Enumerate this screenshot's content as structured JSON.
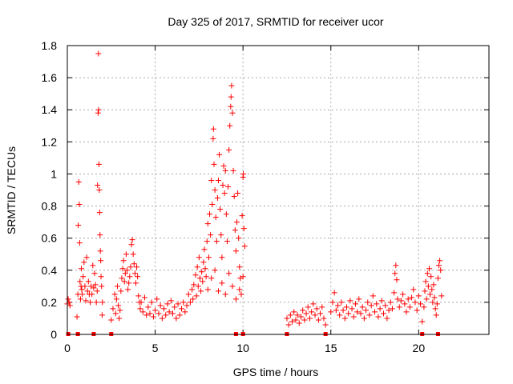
{
  "chart_data": {
    "type": "scatter",
    "title": "Day 325 of 2017, SRMTID for receiver ucor",
    "xlabel": "GPS time / hours",
    "ylabel": "SRMTID / TECUs",
    "xlim": [
      0,
      24
    ],
    "ylim": [
      0,
      1.8
    ],
    "xticks": [
      0,
      5,
      10,
      15,
      20
    ],
    "yticks": [
      0,
      0.2,
      0.4,
      0.6,
      0.8,
      1,
      1.2,
      1.4,
      1.6,
      1.8
    ],
    "ytick_labels": [
      "0",
      "0.2",
      "0.4",
      "0.6",
      "0.8",
      "1",
      "1.2",
      "1.4",
      "1.6",
      "1.8"
    ],
    "grid": true,
    "marker": "+",
    "color": "#ff0000",
    "gaps_marked_at_zero": [
      0.05,
      0.6,
      1.5,
      2.5,
      9.6,
      10.0,
      12.5,
      14.7,
      20.2,
      21.1
    ],
    "series": [
      {
        "name": "SRMTID",
        "points": [
          [
            0.0,
            0.19
          ],
          [
            0.05,
            0.22
          ],
          [
            0.1,
            0.2
          ],
          [
            0.15,
            0.18
          ],
          [
            0.55,
            0.11
          ],
          [
            0.6,
            0.25
          ],
          [
            0.62,
            0.68
          ],
          [
            0.65,
            0.95
          ],
          [
            0.68,
            0.81
          ],
          [
            0.7,
            0.57
          ],
          [
            0.72,
            0.33
          ],
          [
            0.75,
            0.22
          ],
          [
            0.78,
            0.3
          ],
          [
            0.8,
            0.41
          ],
          [
            0.82,
            0.28
          ],
          [
            0.85,
            0.25
          ],
          [
            0.9,
            0.36
          ],
          [
            0.95,
            0.45
          ],
          [
            1.0,
            0.3
          ],
          [
            1.05,
            0.21
          ],
          [
            1.1,
            0.48
          ],
          [
            1.15,
            0.27
          ],
          [
            1.2,
            0.33
          ],
          [
            1.25,
            0.25
          ],
          [
            1.3,
            0.2
          ],
          [
            1.35,
            0.3
          ],
          [
            1.4,
            0.25
          ],
          [
            1.45,
            0.43
          ],
          [
            1.5,
            0.29
          ],
          [
            1.55,
            0.38
          ],
          [
            1.6,
            0.31
          ],
          [
            1.65,
            0.2
          ],
          [
            1.7,
            0.27
          ],
          [
            1.72,
            0.93
          ],
          [
            1.75,
            1.38
          ],
          [
            1.77,
            1.75
          ],
          [
            1.78,
            1.4
          ],
          [
            1.8,
            1.06
          ],
          [
            1.82,
            0.9
          ],
          [
            1.84,
            0.76
          ],
          [
            1.86,
            0.62
          ],
          [
            1.88,
            0.52
          ],
          [
            1.9,
            0.46
          ],
          [
            1.92,
            0.36
          ],
          [
            1.95,
            0.3
          ],
          [
            1.98,
            0.12
          ],
          [
            2.0,
            0.2
          ],
          [
            2.5,
            0.09
          ],
          [
            2.6,
            0.16
          ],
          [
            2.7,
            0.25
          ],
          [
            2.75,
            0.13
          ],
          [
            2.8,
            0.22
          ],
          [
            2.85,
            0.3
          ],
          [
            2.9,
            0.18
          ],
          [
            2.95,
            0.1
          ],
          [
            3.0,
            0.15
          ],
          [
            3.05,
            0.27
          ],
          [
            3.1,
            0.35
          ],
          [
            3.15,
            0.41
          ],
          [
            3.2,
            0.46
          ],
          [
            3.25,
            0.33
          ],
          [
            3.3,
            0.38
          ],
          [
            3.35,
            0.5
          ],
          [
            3.4,
            0.4
          ],
          [
            3.45,
            0.28
          ],
          [
            3.5,
            0.32
          ],
          [
            3.55,
            0.36
          ],
          [
            3.6,
            0.42
          ],
          [
            3.65,
            0.56
          ],
          [
            3.7,
            0.59
          ],
          [
            3.75,
            0.5
          ],
          [
            3.8,
            0.44
          ],
          [
            3.85,
            0.38
          ],
          [
            3.9,
            0.32
          ],
          [
            3.95,
            0.42
          ],
          [
            4.0,
            0.36
          ],
          [
            4.05,
            0.24
          ],
          [
            4.1,
            0.2
          ],
          [
            4.15,
            0.16
          ],
          [
            4.2,
            0.2
          ],
          [
            4.3,
            0.14
          ],
          [
            4.4,
            0.23
          ],
          [
            4.5,
            0.12
          ],
          [
            4.6,
            0.17
          ],
          [
            4.7,
            0.13
          ],
          [
            4.8,
            0.2
          ],
          [
            4.9,
            0.11
          ],
          [
            5.0,
            0.15
          ],
          [
            5.1,
            0.22
          ],
          [
            5.2,
            0.13
          ],
          [
            5.3,
            0.18
          ],
          [
            5.4,
            0.1
          ],
          [
            5.5,
            0.16
          ],
          [
            5.6,
            0.12
          ],
          [
            5.7,
            0.19
          ],
          [
            5.8,
            0.14
          ],
          [
            5.9,
            0.21
          ],
          [
            6.0,
            0.13
          ],
          [
            6.1,
            0.17
          ],
          [
            6.2,
            0.1
          ],
          [
            6.3,
            0.19
          ],
          [
            6.4,
            0.12
          ],
          [
            6.5,
            0.16
          ],
          [
            6.6,
            0.2
          ],
          [
            6.7,
            0.14
          ],
          [
            6.8,
            0.18
          ],
          [
            6.9,
            0.25
          ],
          [
            7.0,
            0.2
          ],
          [
            7.1,
            0.28
          ],
          [
            7.15,
            0.22
          ],
          [
            7.2,
            0.31
          ],
          [
            7.3,
            0.37
          ],
          [
            7.35,
            0.24
          ],
          [
            7.4,
            0.42
          ],
          [
            7.45,
            0.3
          ],
          [
            7.5,
            0.48
          ],
          [
            7.55,
            0.35
          ],
          [
            7.6,
            0.27
          ],
          [
            7.65,
            0.39
          ],
          [
            7.7,
            0.33
          ],
          [
            7.75,
            0.45
          ],
          [
            7.8,
            0.53
          ],
          [
            7.85,
            0.41
          ],
          [
            7.9,
            0.36
          ],
          [
            7.95,
            0.58
          ],
          [
            8.0,
            0.69
          ],
          [
            8.05,
            0.48
          ],
          [
            8.1,
            0.75
          ],
          [
            8.15,
            0.62
          ],
          [
            8.2,
            0.96
          ],
          [
            8.25,
            0.81
          ],
          [
            8.3,
            1.22
          ],
          [
            8.32,
            1.28
          ],
          [
            8.35,
            1.06
          ],
          [
            8.4,
            0.9
          ],
          [
            8.45,
            0.73
          ],
          [
            8.5,
            0.58
          ],
          [
            8.55,
            0.85
          ],
          [
            8.6,
            0.96
          ],
          [
            8.65,
            1.12
          ],
          [
            8.7,
            0.78
          ],
          [
            8.75,
            0.62
          ],
          [
            8.8,
            0.48
          ],
          [
            8.85,
            0.93
          ],
          [
            8.9,
            1.05
          ],
          [
            8.95,
            0.88
          ],
          [
            9.0,
            1.02
          ],
          [
            9.05,
            0.75
          ],
          [
            9.1,
            0.58
          ],
          [
            9.15,
            0.92
          ],
          [
            9.2,
            1.15
          ],
          [
            9.25,
            1.3
          ],
          [
            9.3,
            1.42
          ],
          [
            9.32,
            1.48
          ],
          [
            9.35,
            1.55
          ],
          [
            9.4,
            1.38
          ],
          [
            9.45,
            1.02
          ],
          [
            9.5,
            0.86
          ],
          [
            9.55,
            0.65
          ],
          [
            9.6,
            0.52
          ],
          [
            9.65,
            0.7
          ],
          [
            9.7,
            0.88
          ],
          [
            9.75,
            0.6
          ],
          [
            9.8,
            0.42
          ],
          [
            9.85,
            0.35
          ],
          [
            9.9,
            0.25
          ],
          [
            9.95,
            0.74
          ],
          [
            10.0,
            0.98
          ],
          [
            10.02,
            1.0
          ],
          [
            10.05,
            0.66
          ],
          [
            10.1,
            0.55
          ],
          [
            8.0,
            0.28
          ],
          [
            8.2,
            0.35
          ],
          [
            8.4,
            0.4
          ],
          [
            8.6,
            0.27
          ],
          [
            8.8,
            0.32
          ],
          [
            9.0,
            0.25
          ],
          [
            9.2,
            0.38
          ],
          [
            9.4,
            0.3
          ],
          [
            9.6,
            0.22
          ],
          [
            9.8,
            0.28
          ],
          [
            10.0,
            0.36
          ],
          [
            12.5,
            0.1
          ],
          [
            12.6,
            0.06
          ],
          [
            12.7,
            0.12
          ],
          [
            12.8,
            0.08
          ],
          [
            12.9,
            0.14
          ],
          [
            13.0,
            0.09
          ],
          [
            13.1,
            0.12
          ],
          [
            13.2,
            0.07
          ],
          [
            13.3,
            0.11
          ],
          [
            13.4,
            0.15
          ],
          [
            13.5,
            0.09
          ],
          [
            13.6,
            0.13
          ],
          [
            13.7,
            0.17
          ],
          [
            13.8,
            0.1
          ],
          [
            13.9,
            0.14
          ],
          [
            14.0,
            0.19
          ],
          [
            14.1,
            0.12
          ],
          [
            14.2,
            0.16
          ],
          [
            14.3,
            0.09
          ],
          [
            14.4,
            0.13
          ],
          [
            14.5,
            0.17
          ],
          [
            14.6,
            0.1
          ],
          [
            14.7,
            0.06
          ],
          [
            15.0,
            0.14
          ],
          [
            15.1,
            0.2
          ],
          [
            15.2,
            0.26
          ],
          [
            15.3,
            0.15
          ],
          [
            15.4,
            0.18
          ],
          [
            15.5,
            0.12
          ],
          [
            15.6,
            0.2
          ],
          [
            15.7,
            0.15
          ],
          [
            15.8,
            0.1
          ],
          [
            15.9,
            0.17
          ],
          [
            16.0,
            0.13
          ],
          [
            16.1,
            0.21
          ],
          [
            16.2,
            0.16
          ],
          [
            16.3,
            0.11
          ],
          [
            16.4,
            0.19
          ],
          [
            16.5,
            0.14
          ],
          [
            16.6,
            0.22
          ],
          [
            16.7,
            0.13
          ],
          [
            16.8,
            0.17
          ],
          [
            16.9,
            0.1
          ],
          [
            17.0,
            0.15
          ],
          [
            17.1,
            0.2
          ],
          [
            17.2,
            0.12
          ],
          [
            17.3,
            0.18
          ],
          [
            17.4,
            0.24
          ],
          [
            17.5,
            0.14
          ],
          [
            17.6,
            0.19
          ],
          [
            17.7,
            0.11
          ],
          [
            17.8,
            0.16
          ],
          [
            17.9,
            0.21
          ],
          [
            18.0,
            0.13
          ],
          [
            18.1,
            0.18
          ],
          [
            18.2,
            0.1
          ],
          [
            18.3,
            0.15
          ],
          [
            18.4,
            0.2
          ],
          [
            18.5,
            0.16
          ],
          [
            18.6,
            0.26
          ],
          [
            18.65,
            0.38
          ],
          [
            18.7,
            0.43
          ],
          [
            18.75,
            0.34
          ],
          [
            18.8,
            0.22
          ],
          [
            18.9,
            0.17
          ],
          [
            19.0,
            0.21
          ],
          [
            19.1,
            0.25
          ],
          [
            19.2,
            0.19
          ],
          [
            19.3,
            0.14
          ],
          [
            19.4,
            0.22
          ],
          [
            19.5,
            0.17
          ],
          [
            19.6,
            0.23
          ],
          [
            19.7,
            0.28
          ],
          [
            19.8,
            0.2
          ],
          [
            19.9,
            0.15
          ],
          [
            20.0,
            0.24
          ],
          [
            20.1,
            0.19
          ],
          [
            20.2,
            0.08
          ],
          [
            20.3,
            0.17
          ],
          [
            20.35,
            0.27
          ],
          [
            20.4,
            0.33
          ],
          [
            20.45,
            0.22
          ],
          [
            20.5,
            0.38
          ],
          [
            20.55,
            0.3
          ],
          [
            20.6,
            0.41
          ],
          [
            20.65,
            0.25
          ],
          [
            20.7,
            0.36
          ],
          [
            20.75,
            0.28
          ],
          [
            20.8,
            0.2
          ],
          [
            20.85,
            0.31
          ],
          [
            20.9,
            0.23
          ],
          [
            20.95,
            0.16
          ],
          [
            21.0,
            0.12
          ],
          [
            21.05,
            0.19
          ],
          [
            21.1,
            0.35
          ],
          [
            21.15,
            0.43
          ],
          [
            21.2,
            0.46
          ],
          [
            21.25,
            0.4
          ],
          [
            21.3,
            0.24
          ]
        ]
      }
    ]
  }
}
